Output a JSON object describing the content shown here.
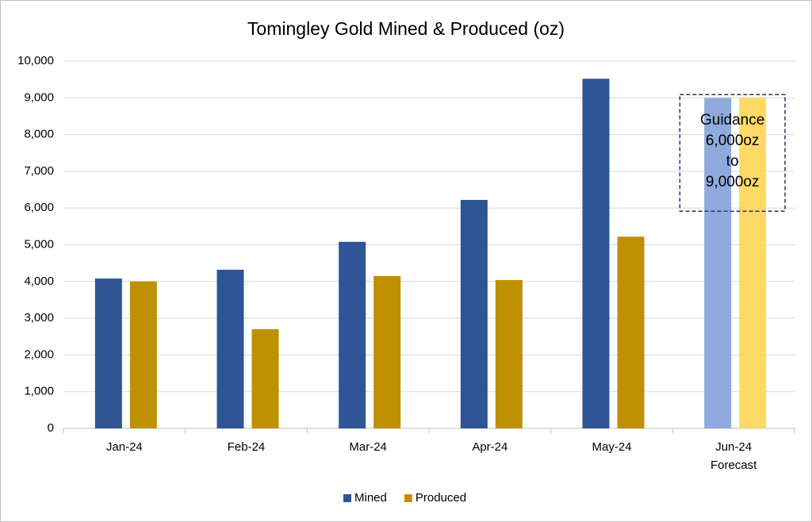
{
  "chart_data": {
    "type": "bar",
    "title": "Tomingley Gold Mined & Produced (oz)",
    "categories": [
      "Jan-24",
      "Feb-24",
      "Mar-24",
      "Apr-24",
      "May-24",
      "Jun-24\nForecast"
    ],
    "series": [
      {
        "name": "Mined",
        "color": "#2f5597",
        "colors": [
          "#2f5597",
          "#2f5597",
          "#2f5597",
          "#2f5597",
          "#2f5597",
          "#8faadc"
        ],
        "values": [
          4080,
          4320,
          5080,
          6220,
          9520,
          9000
        ]
      },
      {
        "name": "Produced",
        "color": "#bf9000",
        "colors": [
          "#bf9000",
          "#bf9000",
          "#bf9000",
          "#bf9000",
          "#bf9000",
          "#ffd966"
        ],
        "values": [
          4000,
          2700,
          4150,
          4040,
          5220,
          9000
        ]
      }
    ],
    "ylim": [
      0,
      10000
    ],
    "yticks": [
      0,
      {
        "value": 1000,
        "label": "1,000"
      },
      {
        "value": 2000,
        "label": "2,000"
      },
      {
        "value": 3000,
        "label": "3,000"
      },
      {
        "value": 4000,
        "label": "4,000"
      },
      {
        "value": 5000,
        "label": "5,000"
      },
      {
        "value": 6000,
        "label": "6,000"
      },
      {
        "value": 7000,
        "label": "7,000"
      },
      {
        "value": 8000,
        "label": "8,000"
      },
      {
        "value": 9000,
        "label": "9,000"
      },
      {
        "value": 10000,
        "label": "10,000"
      }
    ],
    "grid": true,
    "legend": "bottom",
    "annotation": {
      "text": "Guidance\n6,000oz\nto\n9,000oz",
      "range": [
        6000,
        9000
      ],
      "category_index": 5
    }
  }
}
